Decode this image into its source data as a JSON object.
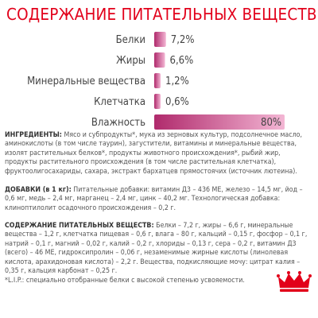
{
  "title": "СОДЕРЖАНИЕ ПИТАТЕЛЬНЫХ ВЕЩЕСТВ",
  "chart_data": {
    "type": "bar",
    "orientation": "horizontal",
    "categories": [
      "Белки",
      "Жиры",
      "Минеральные вещества",
      "Клетчатка",
      "Влажность"
    ],
    "values": [
      7.2,
      6.6,
      1.2,
      0.6,
      80
    ],
    "value_labels": [
      "7,2%",
      "6,6%",
      "1,2%",
      "0,6%",
      "80%"
    ],
    "grid": false,
    "axes_visible": false,
    "bar_colors": [
      "#b02a6c",
      "#f3b6d4"
    ]
  },
  "ingredients": {
    "label": "ИНГРЕДИЕНТЫ:",
    "text": "Мясо и субпродукты*, мука из зерновых культур, подсолнечное масло, аминокислоты (в том числе таурин), загустители, витамины и минеральные вещества, изолят растительных белков*, продукты животного происхождения*, рыбий жир, продукты растительного происхождения (в том числе растительная клетчатка), фруктоолигосахариды, сахара, экстракт бархатцев прямостоячих (источник лютеина)."
  },
  "additives": {
    "label": "ДОБАВКИ (в 1 кг):",
    "text": "Питательные добавки: витамин Д3 – 436 МЕ, железо – 14,5 мг, йод – 0,6 мг, медь – 2,4 мг, марганец – 2,4 мг, цинк – 40,2 мг. Технологическая добавка: клиноптилолит осадочного происхождения – 0,2 г."
  },
  "nutrients": {
    "label": "СОДЕРЖАНИЕ ПИТАТЕЛЬНЫХ ВЕЩЕСТВ:",
    "text": "Белки – 7,2 г, жиры – 6,6 г, минеральные вещества – 1,2 г, клетчатка пищевая – 0,6 г, влага – 80 г, кальций – 0,15 г, фосфор – 0,1 г, натрий – 0,1 г, магний – 0,02 г, калий – 0,2 г, хлориды – 0,13 г, сера – 0,2 г, витамин Д3 (всего) – 46 МЕ, гидроксипролин – 0,06 г, незаменимые жирные кислоты (линолевая кислота, арахидоновая кислота) – 2,2 г. Вещества, подкисляющие мочу: цитрат калия – 0,35 г, кальция карбонат – 0,25 г."
  },
  "footnote": "*L.I.P.: специально отобранные белки с высокой степенью усвояемости.",
  "colors": {
    "title": "#e2001a",
    "text": "#555555",
    "logo": "#e2001a"
  },
  "logo_icon": "royal-canin-crown-logo"
}
